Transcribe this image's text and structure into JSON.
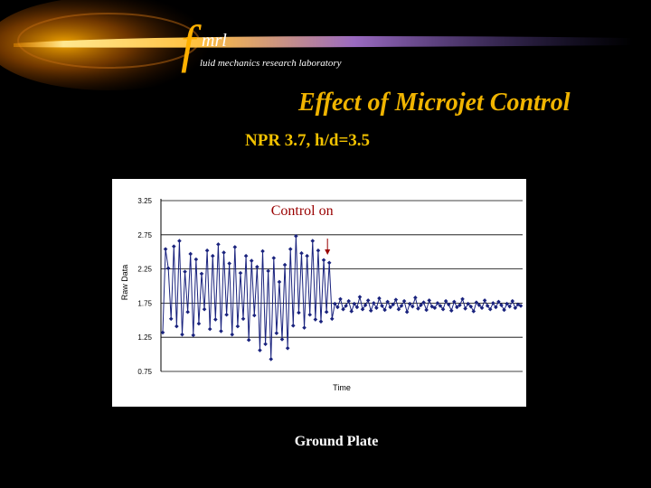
{
  "header": {
    "logo_letter": "f",
    "logo_text": "mrl",
    "tagline": "luid mechanics research laboratory",
    "colors": {
      "swoosh_core": "#ffe890",
      "swoosh_glow": "#ff8a00",
      "swoosh_tail": "#6b4aa8"
    }
  },
  "slide": {
    "title": "Effect of Microjet Control",
    "subtitle": "NPR 3.7,  h/d=3.5",
    "caption": "Ground Plate",
    "title_color": "#f0b400"
  },
  "chart_data": {
    "type": "line",
    "title": "",
    "xlabel": "Time",
    "ylabel": "Raw Data",
    "ylim": [
      0.75,
      3.25
    ],
    "yticks": [
      "3.25",
      "2.75",
      "2.25",
      "1.75",
      "1.25",
      "0.75"
    ],
    "grid": true,
    "marker": "diamond",
    "series_color": "#1a237e",
    "annotation": {
      "text": "Control on",
      "color": "#990000",
      "arrow_at_index": 60
    },
    "series": [
      {
        "values": [
          1.32,
          2.54,
          2.26,
          1.52,
          2.58,
          1.41,
          2.66,
          1.29,
          2.21,
          1.62,
          2.47,
          1.28,
          2.39,
          1.45,
          2.18,
          1.66,
          2.52,
          1.37,
          2.44,
          1.51,
          2.61,
          1.34,
          2.49,
          1.58,
          2.33,
          1.29,
          2.57,
          1.41,
          2.19,
          1.52,
          2.44,
          1.21,
          2.37,
          1.57,
          2.28,
          1.06,
          2.51,
          1.15,
          2.22,
          0.93,
          2.41,
          1.31,
          2.06,
          1.22,
          2.31,
          1.09,
          2.54,
          1.42,
          2.73,
          1.61,
          2.48,
          1.39,
          2.44,
          1.58,
          2.66,
          1.51,
          2.52,
          1.48,
          2.38,
          1.62,
          2.34,
          1.52,
          1.74,
          1.69,
          1.81,
          1.66,
          1.71,
          1.78,
          1.63,
          1.74,
          1.69,
          1.84,
          1.66,
          1.72,
          1.79,
          1.64,
          1.75,
          1.68,
          1.82,
          1.71,
          1.65,
          1.77,
          1.69,
          1.73,
          1.8,
          1.66,
          1.71,
          1.78,
          1.62,
          1.74,
          1.7,
          1.83,
          1.67,
          1.72,
          1.76,
          1.65,
          1.79,
          1.7,
          1.68,
          1.75,
          1.71,
          1.66,
          1.78,
          1.73,
          1.64,
          1.77,
          1.69,
          1.72,
          1.81,
          1.67,
          1.74,
          1.7,
          1.63,
          1.76,
          1.72,
          1.68,
          1.79,
          1.71,
          1.66,
          1.75,
          1.69,
          1.77,
          1.72,
          1.65,
          1.74,
          1.7,
          1.78,
          1.68,
          1.73,
          1.71
        ]
      }
    ]
  }
}
